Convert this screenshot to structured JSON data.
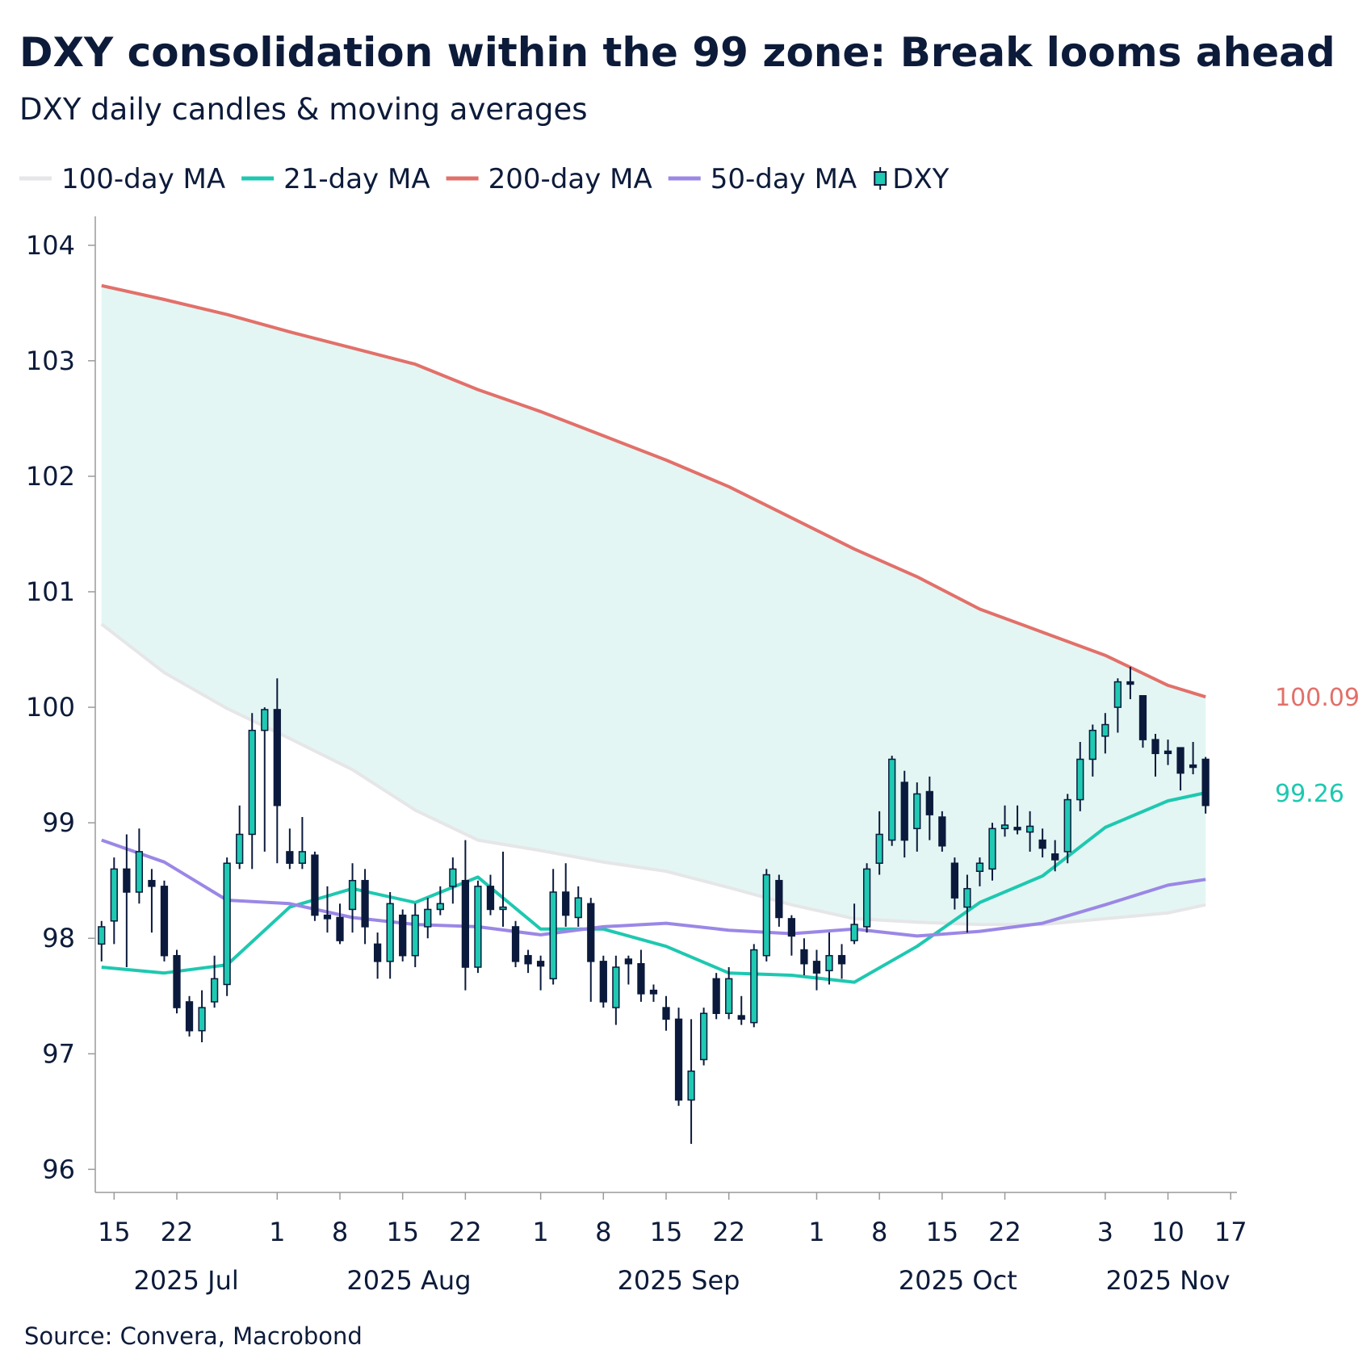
{
  "chart_data": {
    "type": "candlestick",
    "title": "DXY consolidation within the 99 zone: Break looms ahead",
    "subtitle": "DXY daily candles & moving averages",
    "source": "Source: Convera, Macrobond",
    "x": [
      "2025-07-14",
      "2025-07-15",
      "2025-07-16",
      "2025-07-17",
      "2025-07-18",
      "2025-07-21",
      "2025-07-22",
      "2025-07-23",
      "2025-07-24",
      "2025-07-25",
      "2025-07-28",
      "2025-07-29",
      "2025-07-30",
      "2025-07-31",
      "2025-08-01",
      "2025-08-04",
      "2025-08-05",
      "2025-08-06",
      "2025-08-07",
      "2025-08-08",
      "2025-08-11",
      "2025-08-12",
      "2025-08-13",
      "2025-08-14",
      "2025-08-15",
      "2025-08-18",
      "2025-08-19",
      "2025-08-20",
      "2025-08-21",
      "2025-08-22",
      "2025-08-25",
      "2025-08-26",
      "2025-08-27",
      "2025-08-28",
      "2025-08-29",
      "2025-09-01",
      "2025-09-02",
      "2025-09-03",
      "2025-09-04",
      "2025-09-05",
      "2025-09-08",
      "2025-09-09",
      "2025-09-10",
      "2025-09-11",
      "2025-09-12",
      "2025-09-15",
      "2025-09-16",
      "2025-09-17",
      "2025-09-18",
      "2025-09-19",
      "2025-09-22",
      "2025-09-23",
      "2025-09-24",
      "2025-09-25",
      "2025-09-26",
      "2025-09-29",
      "2025-09-30",
      "2025-10-01",
      "2025-10-02",
      "2025-10-03",
      "2025-10-06",
      "2025-10-07",
      "2025-10-08",
      "2025-10-09",
      "2025-10-10",
      "2025-10-13",
      "2025-10-14",
      "2025-10-15",
      "2025-10-16",
      "2025-10-17",
      "2025-10-20",
      "2025-10-21",
      "2025-10-22",
      "2025-10-23",
      "2025-10-24",
      "2025-10-27",
      "2025-10-28",
      "2025-10-29",
      "2025-10-30",
      "2025-10-31",
      "2025-11-03",
      "2025-11-04",
      "2025-11-05",
      "2025-11-06",
      "2025-11-07",
      "2025-11-10",
      "2025-11-11",
      "2025-11-12",
      "2025-11-13"
    ],
    "candles": {
      "name": "DXY",
      "up_color": "#1fc9b2",
      "down_color": "#0b1a3c",
      "open": [
        97.95,
        98.15,
        98.6,
        98.4,
        98.5,
        98.45,
        97.85,
        97.45,
        97.2,
        97.45,
        97.6,
        98.65,
        98.9,
        99.8,
        99.98,
        98.75,
        98.65,
        98.72,
        98.2,
        98.18,
        98.25,
        98.5,
        97.95,
        97.8,
        98.2,
        97.85,
        98.1,
        98.25,
        98.45,
        98.5,
        97.75,
        98.45,
        98.25,
        98.1,
        97.85,
        97.8,
        97.65,
        98.4,
        98.18,
        98.3,
        97.8,
        97.4,
        97.82,
        97.78,
        97.55,
        97.4,
        97.3,
        96.6,
        96.95,
        97.65,
        97.35,
        97.33,
        97.27,
        97.85,
        98.5,
        98.17,
        97.9,
        97.8,
        97.72,
        97.85,
        97.98,
        98.1,
        98.65,
        98.85,
        99.35,
        98.95,
        99.27,
        99.05,
        98.65,
        98.27,
        98.58,
        98.6,
        98.95,
        98.96,
        98.92,
        98.85,
        98.73,
        98.75,
        99.2,
        99.55,
        99.75,
        100.0,
        100.22,
        100.1,
        99.72,
        99.62,
        99.65,
        99.5,
        99.55
      ],
      "high": [
        98.15,
        98.7,
        98.9,
        98.95,
        98.6,
        98.5,
        97.9,
        97.5,
        97.55,
        97.85,
        98.7,
        99.15,
        99.95,
        100.0,
        100.25,
        98.95,
        99.05,
        98.75,
        98.45,
        98.3,
        98.65,
        98.6,
        98.05,
        98.4,
        98.25,
        98.3,
        98.35,
        98.45,
        98.7,
        98.85,
        98.5,
        98.55,
        98.75,
        98.15,
        97.9,
        97.85,
        98.6,
        98.65,
        98.45,
        98.35,
        97.85,
        97.85,
        97.85,
        97.9,
        97.6,
        97.5,
        97.4,
        97.3,
        97.4,
        97.7,
        97.75,
        97.5,
        97.95,
        98.6,
        98.55,
        98.2,
        98.0,
        97.9,
        98.05,
        97.95,
        98.3,
        98.65,
        99.1,
        99.58,
        99.45,
        99.35,
        99.4,
        99.1,
        98.7,
        98.55,
        98.7,
        99.0,
        99.15,
        99.15,
        99.1,
        98.95,
        98.85,
        99.25,
        99.7,
        99.85,
        99.95,
        100.25,
        100.35,
        100.1,
        99.77,
        99.72,
        99.65,
        99.7,
        99.57
      ],
      "low": [
        97.8,
        97.95,
        97.75,
        98.3,
        98.05,
        97.8,
        97.35,
        97.15,
        97.1,
        97.4,
        97.5,
        98.6,
        98.6,
        98.75,
        98.65,
        98.6,
        98.6,
        98.15,
        98.05,
        97.95,
        98.05,
        97.95,
        97.65,
        97.65,
        97.8,
        97.75,
        98.0,
        98.2,
        98.3,
        97.55,
        97.7,
        98.2,
        98.1,
        97.75,
        97.7,
        97.55,
        97.6,
        98.1,
        98.1,
        97.45,
        97.4,
        97.25,
        97.6,
        97.45,
        97.45,
        97.2,
        96.55,
        96.22,
        96.9,
        97.3,
        97.3,
        97.25,
        97.23,
        97.8,
        98.1,
        97.85,
        97.68,
        97.55,
        97.6,
        97.65,
        97.95,
        98.05,
        98.55,
        98.8,
        98.7,
        98.75,
        98.85,
        98.75,
        98.25,
        98.05,
        98.45,
        98.5,
        98.88,
        98.9,
        98.75,
        98.7,
        98.58,
        98.65,
        99.1,
        99.4,
        99.6,
        99.78,
        100.07,
        99.65,
        99.4,
        99.5,
        99.28,
        99.42,
        99.08
      ],
      "close": [
        98.1,
        98.6,
        98.4,
        98.75,
        98.45,
        97.85,
        97.4,
        97.2,
        97.4,
        97.65,
        98.65,
        98.9,
        99.8,
        99.98,
        99.15,
        98.65,
        98.75,
        98.2,
        98.17,
        97.98,
        98.5,
        98.1,
        97.8,
        98.3,
        97.85,
        98.2,
        98.25,
        98.3,
        98.6,
        97.75,
        98.45,
        98.25,
        98.27,
        97.8,
        97.78,
        97.76,
        98.4,
        98.2,
        98.35,
        97.8,
        97.45,
        97.75,
        97.78,
        97.52,
        97.52,
        97.3,
        96.6,
        96.85,
        97.35,
        97.35,
        97.65,
        97.3,
        97.9,
        98.55,
        98.18,
        98.02,
        97.78,
        97.7,
        97.85,
        97.78,
        98.12,
        98.6,
        98.9,
        99.55,
        98.85,
        99.25,
        99.07,
        98.8,
        98.35,
        98.43,
        98.65,
        98.95,
        98.98,
        98.94,
        98.97,
        98.78,
        98.68,
        99.2,
        99.55,
        99.8,
        99.85,
        100.22,
        100.2,
        99.72,
        99.6,
        99.6,
        99.43,
        99.48,
        99.15
      ]
    },
    "series": [
      {
        "name": "100-day MA",
        "color": "#e6e6e8",
        "x": [
          "2025-07-14",
          "2025-07-21",
          "2025-07-28",
          "2025-08-04",
          "2025-08-11",
          "2025-08-18",
          "2025-08-25",
          "2025-09-01",
          "2025-09-08",
          "2025-09-15",
          "2025-09-22",
          "2025-09-29",
          "2025-10-06",
          "2025-10-13",
          "2025-10-20",
          "2025-10-27",
          "2025-11-03",
          "2025-11-10",
          "2025-11-13"
        ],
        "values": [
          100.72,
          100.3,
          99.99,
          99.73,
          99.46,
          99.11,
          98.85,
          98.76,
          98.66,
          98.58,
          98.44,
          98.29,
          98.17,
          98.14,
          98.12,
          98.12,
          98.17,
          98.22,
          98.29
        ]
      },
      {
        "name": "21-day MA",
        "color": "#1ec8b0",
        "end_label": true,
        "x": [
          "2025-07-14",
          "2025-07-21",
          "2025-07-28",
          "2025-08-04",
          "2025-08-11",
          "2025-08-18",
          "2025-08-25",
          "2025-09-01",
          "2025-09-08",
          "2025-09-15",
          "2025-09-22",
          "2025-09-29",
          "2025-10-06",
          "2025-10-13",
          "2025-10-20",
          "2025-10-27",
          "2025-11-03",
          "2025-11-10",
          "2025-11-13"
        ],
        "values": [
          97.75,
          97.7,
          97.77,
          98.27,
          98.43,
          98.31,
          98.53,
          98.08,
          98.08,
          97.93,
          97.7,
          97.68,
          97.62,
          97.93,
          98.31,
          98.54,
          98.96,
          99.19,
          99.26
        ]
      },
      {
        "name": "200-day MA",
        "color": "#e2706a",
        "end_label": true,
        "fill_to": "100-day MA",
        "fill_color": "#e3f6f3",
        "x": [
          "2025-07-14",
          "2025-07-21",
          "2025-07-28",
          "2025-08-04",
          "2025-08-11",
          "2025-08-18",
          "2025-08-25",
          "2025-09-01",
          "2025-09-08",
          "2025-09-15",
          "2025-09-22",
          "2025-09-29",
          "2025-10-06",
          "2025-10-13",
          "2025-10-20",
          "2025-10-27",
          "2025-11-03",
          "2025-11-10",
          "2025-11-13"
        ],
        "values": [
          103.65,
          103.53,
          103.4,
          103.25,
          103.11,
          102.97,
          102.75,
          102.56,
          102.35,
          102.14,
          101.91,
          101.64,
          101.37,
          101.13,
          100.85,
          100.65,
          100.45,
          100.19,
          100.09
        ]
      },
      {
        "name": "50-day MA",
        "color": "#9b87e6",
        "x": [
          "2025-07-14",
          "2025-07-21",
          "2025-07-28",
          "2025-08-04",
          "2025-08-11",
          "2025-08-18",
          "2025-08-25",
          "2025-09-01",
          "2025-09-08",
          "2025-09-15",
          "2025-09-22",
          "2025-09-29",
          "2025-10-06",
          "2025-10-13",
          "2025-10-20",
          "2025-10-27",
          "2025-11-03",
          "2025-11-10",
          "2025-11-13"
        ],
        "values": [
          98.85,
          98.66,
          98.33,
          98.3,
          98.18,
          98.12,
          98.1,
          98.03,
          98.1,
          98.13,
          98.07,
          98.04,
          98.08,
          98.02,
          98.06,
          98.13,
          98.29,
          98.46,
          98.51
        ]
      }
    ],
    "xlim": [
      "2025-07-14",
      "2025-11-17"
    ],
    "xticks": [
      {
        "value": "2025-07-15",
        "label": "15"
      },
      {
        "value": "2025-07-22",
        "label": "22"
      },
      {
        "value": "2025-08-01",
        "label": "1"
      },
      {
        "value": "2025-08-08",
        "label": "8"
      },
      {
        "value": "2025-08-15",
        "label": "15"
      },
      {
        "value": "2025-08-22",
        "label": "22"
      },
      {
        "value": "2025-09-01",
        "label": "1"
      },
      {
        "value": "2025-09-08",
        "label": "8"
      },
      {
        "value": "2025-09-15",
        "label": "15"
      },
      {
        "value": "2025-09-22",
        "label": "22"
      },
      {
        "value": "2025-10-01",
        "label": "1"
      },
      {
        "value": "2025-10-08",
        "label": "8"
      },
      {
        "value": "2025-10-15",
        "label": "15"
      },
      {
        "value": "2025-10-22",
        "label": "22"
      },
      {
        "value": "2025-11-03",
        "label": "3"
      },
      {
        "value": "2025-11-10",
        "label": "10"
      },
      {
        "value": "2025-11-17",
        "label": "17"
      }
    ],
    "month_labels": [
      {
        "value": "2025-07-01",
        "label": "2025 Jul"
      },
      {
        "value": "2025-08-01",
        "label": "2025 Aug"
      },
      {
        "value": "2025-09-01",
        "label": "2025 Sep"
      },
      {
        "value": "2025-10-01",
        "label": "2025 Oct"
      },
      {
        "value": "2025-11-01",
        "label": "2025 Nov"
      }
    ],
    "ylim": [
      95.8,
      104.25
    ],
    "yticks": [
      96,
      97,
      98,
      99,
      100,
      101,
      102,
      103,
      104
    ],
    "grid": false,
    "legend": "top-left"
  }
}
